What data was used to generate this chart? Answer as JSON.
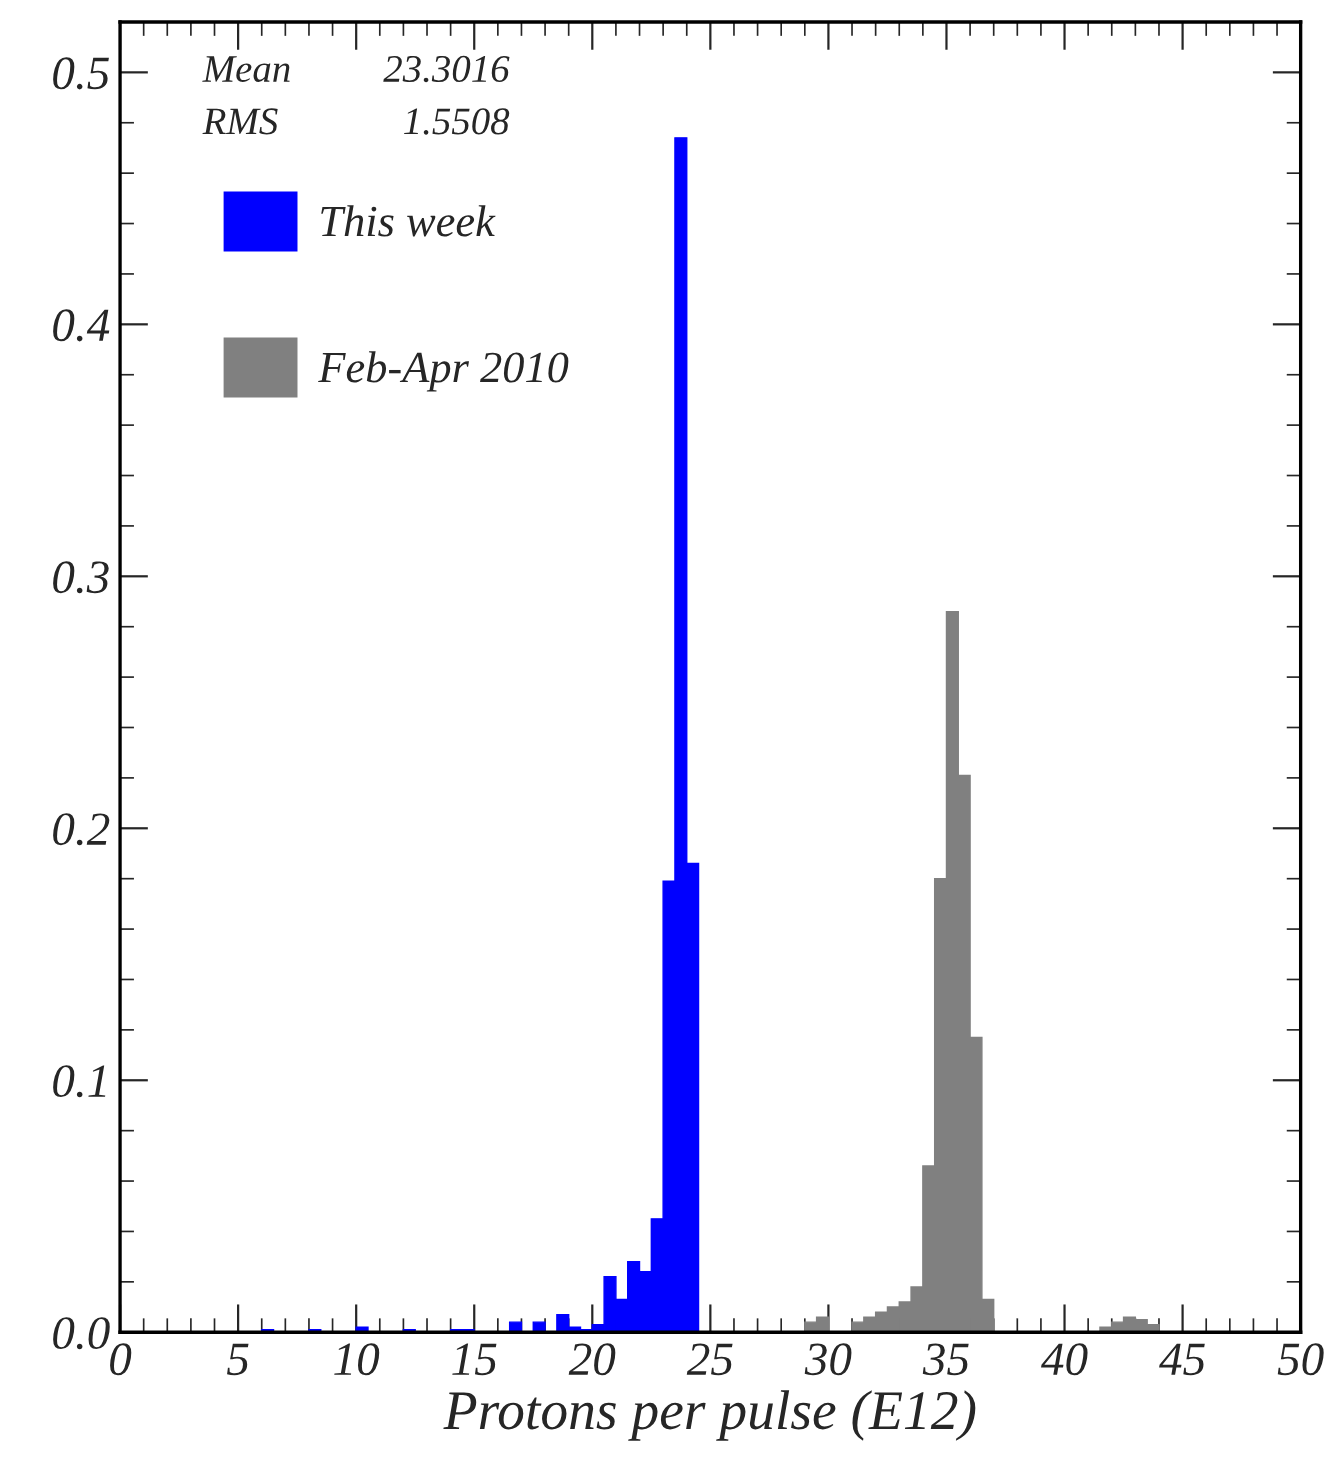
{
  "chart_data": {
    "type": "histogram",
    "xlabel": "Protons per pulse (E12)",
    "annotations": [
      "Mean 23.3016",
      "RMS 1.5508"
    ],
    "bins": [
      0,
      0.5,
      1,
      1.5,
      2,
      2.5,
      3,
      3.5,
      4,
      4.5,
      5,
      5.5,
      6,
      6.5,
      7,
      7.5,
      8,
      8.5,
      9,
      9.5,
      10,
      10.5,
      11,
      11.5,
      12,
      12.5,
      13,
      13.5,
      14,
      14.5,
      15,
      15.5,
      16,
      16.5,
      17,
      17.5,
      18,
      18.5,
      19,
      19.5,
      20,
      20.5,
      21,
      21.5,
      22,
      22.5,
      23,
      23.5,
      24,
      24.5,
      25,
      25.5,
      26,
      26.5,
      27,
      27.5,
      28,
      28.5,
      29,
      29.5,
      30,
      30.5,
      31,
      31.5,
      32,
      32.5,
      33,
      33.5,
      34,
      34.5,
      35,
      35.5,
      36,
      36.5,
      37,
      37.5,
      38,
      38.5,
      39,
      39.5,
      40,
      40.5,
      41,
      41.5,
      42,
      42.5,
      43,
      43.5,
      44,
      44.5,
      45,
      45.5,
      46,
      46.5,
      47,
      47.5,
      48,
      48.5,
      49,
      49.5,
      50
    ],
    "series": [
      {
        "name": "This week",
        "color": "#0000ff",
        "values": [
          0,
          0,
          0,
          0,
          0,
          0,
          0,
          0,
          0,
          0,
          0,
          0,
          0.001,
          0,
          0,
          0,
          0.001,
          0,
          0,
          0,
          0.002,
          0,
          0,
          0,
          0.001,
          0,
          0,
          0,
          0.001,
          0.001,
          0,
          0,
          0,
          0.004,
          0,
          0.004,
          0,
          0.007,
          0.002,
          0.001,
          0.003,
          0.022,
          0.013,
          0.028,
          0.024,
          0.045,
          0.179,
          0.474,
          0.186,
          0,
          0,
          0,
          0,
          0,
          0,
          0,
          0,
          0,
          0,
          0,
          0,
          0,
          0,
          0,
          0,
          0,
          0,
          0,
          0,
          0,
          0,
          0,
          0,
          0,
          0,
          0,
          0,
          0,
          0,
          0,
          0,
          0,
          0,
          0,
          0,
          0,
          0,
          0,
          0,
          0,
          0,
          0,
          0,
          0,
          0,
          0,
          0,
          0,
          0,
          0
        ]
      },
      {
        "name": "Feb-Apr 2010",
        "color": "#808080",
        "values": [
          0,
          0,
          0,
          0,
          0,
          0,
          0,
          0,
          0,
          0,
          0,
          0,
          0,
          0,
          0,
          0,
          0,
          0,
          0,
          0,
          0,
          0,
          0,
          0,
          0,
          0,
          0,
          0,
          0,
          0,
          0,
          0,
          0,
          0,
          0,
          0,
          0,
          0,
          0,
          0,
          0,
          0,
          0,
          0,
          0,
          0,
          0,
          0,
          0,
          0,
          0,
          0,
          0,
          0,
          0,
          0,
          0,
          0,
          0.004,
          0.006,
          0,
          0,
          0.004,
          0.006,
          0.008,
          0.01,
          0.012,
          0.018,
          0.066,
          0.18,
          0.286,
          0.221,
          0.117,
          0.013,
          0,
          0,
          0,
          0,
          0,
          0,
          0,
          0,
          0,
          0.002,
          0.004,
          0.006,
          0.005,
          0.003,
          0,
          0,
          0,
          0,
          0,
          0,
          0,
          0,
          0,
          0,
          0,
          0
        ]
      }
    ],
    "xlim": [
      0,
      50
    ],
    "xticks": [
      0,
      5,
      10,
      15,
      20,
      25,
      30,
      35,
      40,
      45,
      50
    ],
    "ylim": [
      0,
      0.52
    ],
    "yticks": [
      {
        "value": 0,
        "label": "0.0"
      },
      0.1,
      0.2,
      0.3,
      0.4,
      0.5
    ],
    "legend": "top left",
    "grid": false
  }
}
